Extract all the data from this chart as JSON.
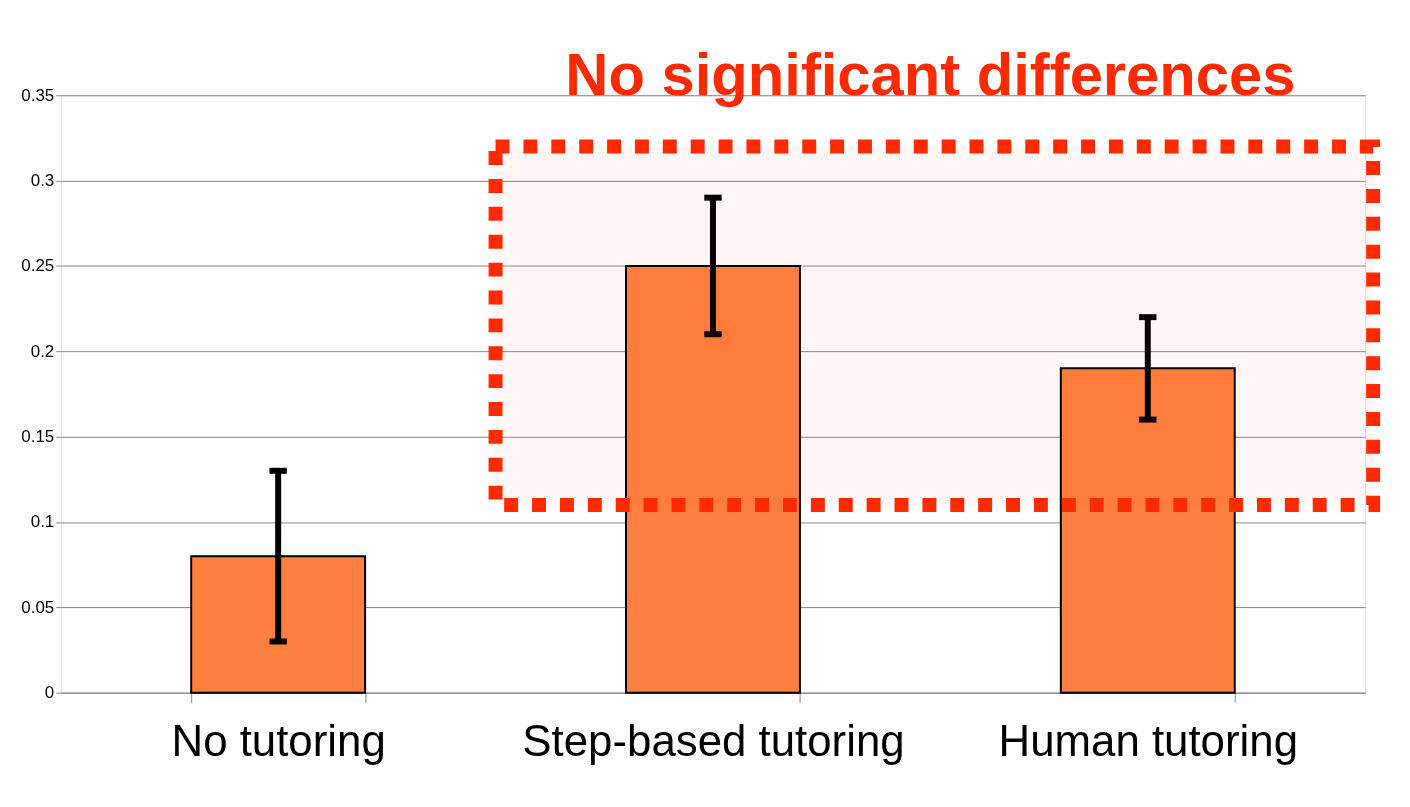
{
  "chart_data": {
    "type": "bar",
    "categories": [
      "No tutoring",
      "Step-based tutoring",
      "Human tutoring"
    ],
    "values": [
      0.08,
      0.25,
      0.19
    ],
    "color": "#ff7f40",
    "errors": [
      [
        0.03,
        0.13
      ],
      [
        0.21,
        0.29
      ],
      [
        0.16,
        0.22
      ]
    ],
    "ylim": [
      0,
      0.35
    ],
    "yticks": [
      0,
      0.05,
      0.1,
      0.15,
      0.2,
      0.25,
      0.3,
      0.35
    ],
    "grid": "y",
    "bands": [
      {
        "axis": "y",
        "from": 0.11,
        "to": 0.32,
        "label": "No significant differences",
        "color": "#ff2a00"
      }
    ]
  }
}
